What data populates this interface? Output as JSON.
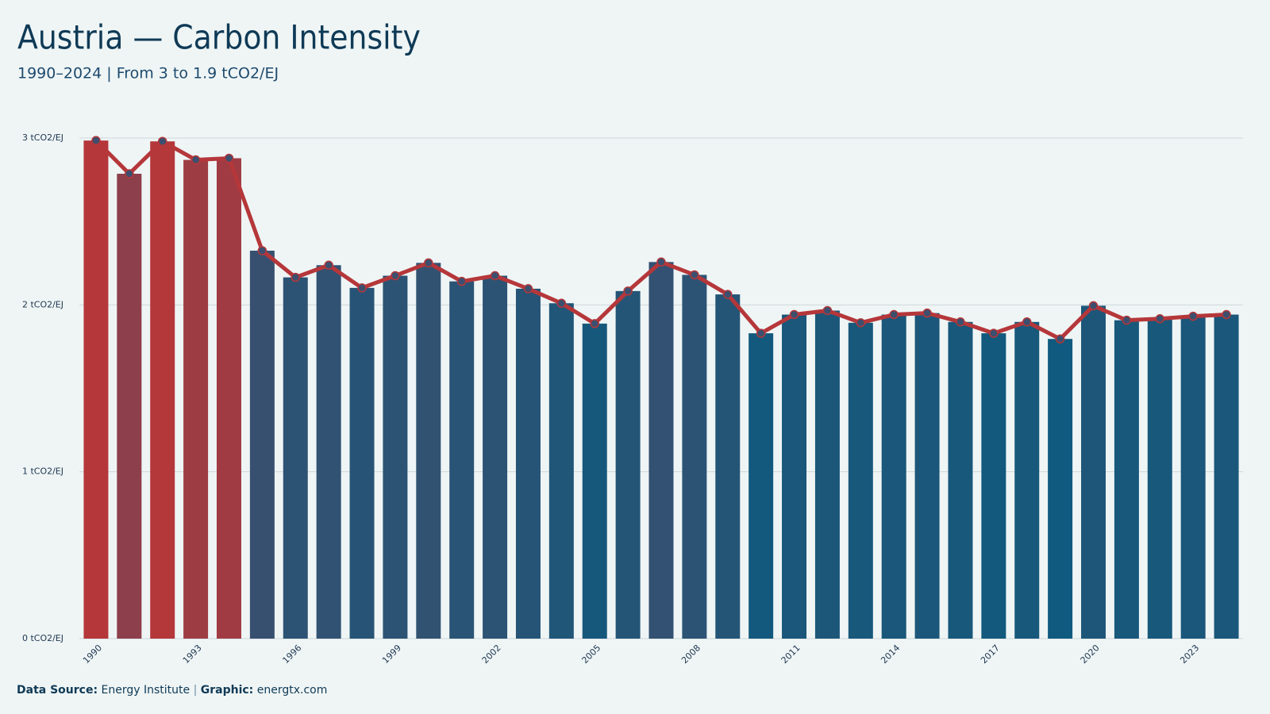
{
  "chart_data": {
    "type": "bar",
    "title": "Austria — Carbon Intensity",
    "subtitle": "1990–2024 | From 3 to 1.9 tCO2/EJ",
    "categories": [
      "1990",
      null,
      null,
      "1993",
      null,
      null,
      "1996",
      null,
      null,
      "1999",
      null,
      null,
      "2002",
      null,
      null,
      "2005",
      null,
      null,
      "2008",
      null,
      null,
      "2011",
      null,
      null,
      "2014",
      null,
      null,
      "2017",
      null,
      null,
      "2020",
      null,
      null,
      "2023",
      null
    ],
    "values": [
      2.985,
      2.786,
      2.98,
      2.869,
      2.879,
      2.325,
      2.165,
      2.238,
      2.102,
      2.175,
      2.252,
      2.141,
      2.175,
      2.097,
      2.01,
      1.888,
      2.083,
      2.257,
      2.18,
      2.063,
      1.83,
      1.942,
      1.966,
      1.893,
      1.942,
      1.951,
      1.898,
      1.83,
      1.898,
      1.796,
      1.995,
      1.908,
      1.917,
      1.932,
      1.942
    ],
    "color_low": "#0f5a7e",
    "color_mid": "#3d4f6e",
    "color_high": "#b5373a",
    "line": true,
    "line_color": "#b5373a",
    "marker_color": "#3d4f6e",
    "ylim": [
      0,
      3
    ],
    "yticks": [
      {
        "value": 0,
        "label": "0 tCO2/EJ"
      },
      {
        "value": 1,
        "label": "1 tCO2/EJ"
      },
      {
        "value": 2,
        "label": "2 tCO2/EJ"
      },
      {
        "value": 3,
        "label": "3 tCO2/EJ"
      }
    ],
    "grid": true,
    "source_label": "Data Source:",
    "source": "Energy Institute",
    "separator": "|",
    "graphic_label": "Graphic:",
    "graphic": "energtx.com"
  }
}
